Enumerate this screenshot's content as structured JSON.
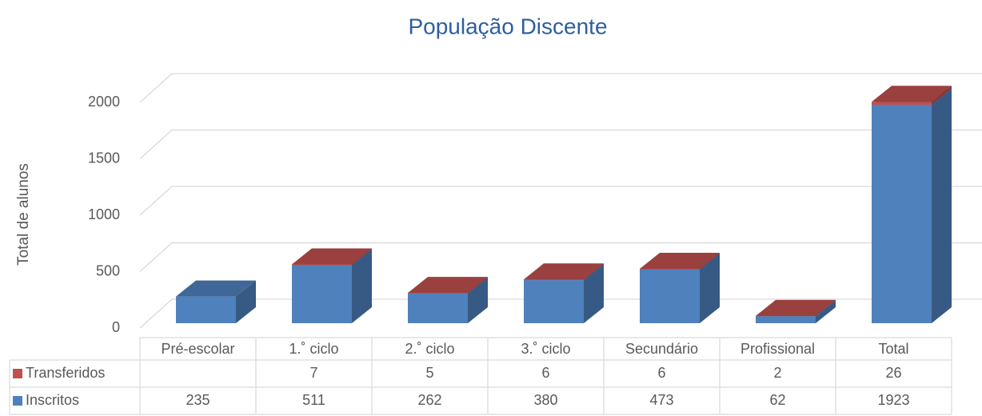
{
  "chart_data": {
    "type": "bar3d_stacked",
    "title": "População Discente",
    "y_axis_label": "Total de alunos",
    "categories": [
      "Pré-escolar",
      "1.˚ ciclo",
      "2.˚ ciclo",
      "3.˚ ciclo",
      "Secundário",
      "Profissional",
      "Total"
    ],
    "series": [
      {
        "name": "Inscritos",
        "color": "#4f81bd",
        "values": [
          235,
          511,
          262,
          380,
          473,
          62,
          1923
        ]
      },
      {
        "name": "Transferidos",
        "color": "#c0504d",
        "values": [
          null,
          7,
          5,
          6,
          6,
          2,
          26
        ]
      }
    ],
    "ylim": [
      0,
      2000
    ],
    "yticks": [
      0,
      500,
      1000,
      1500,
      2000
    ],
    "grid": true,
    "data_table": true
  }
}
